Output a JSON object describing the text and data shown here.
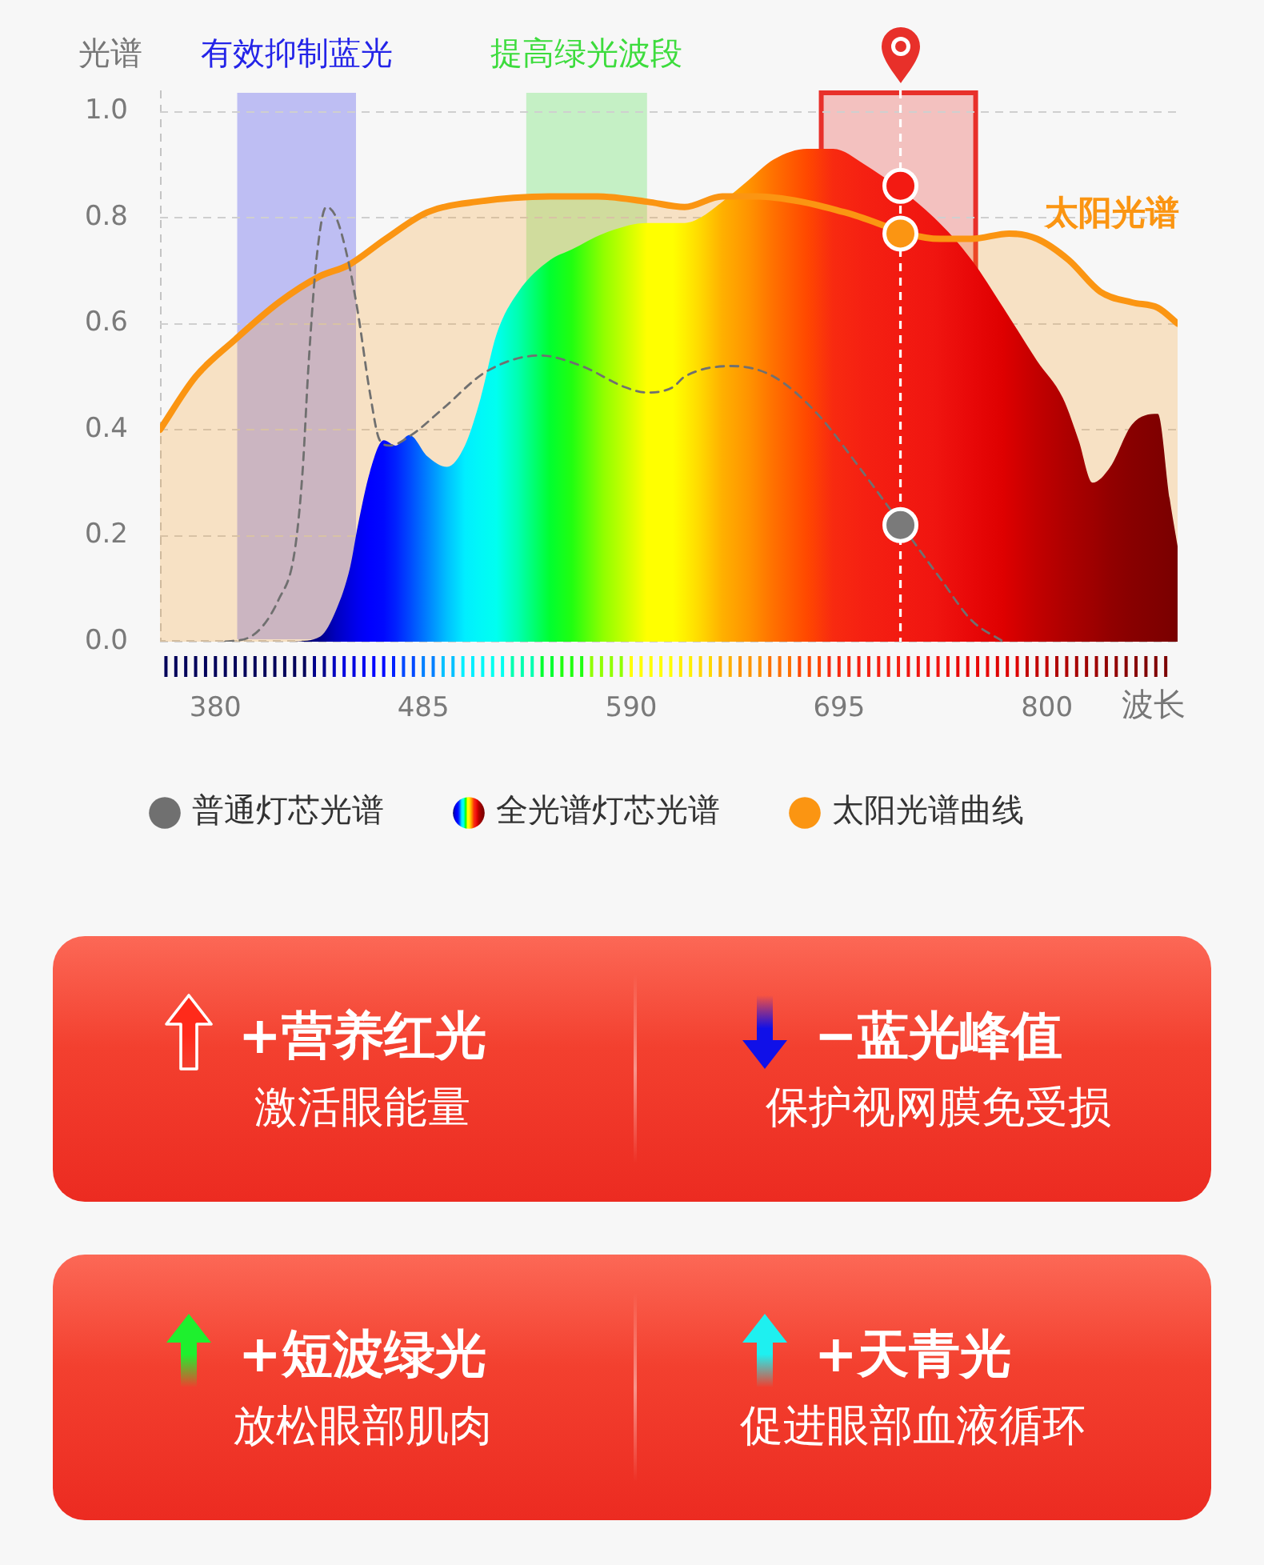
{
  "chart_data": [
    {
      "type": "line",
      "ylabel": "光谱",
      "xlabel": "波长",
      "xlim": [
        352,
        866
      ],
      "xticks": [
        {
          "value": 355,
          "label": null
        },
        {
          "value": 360,
          "label": null
        },
        {
          "value": 365,
          "label": null
        },
        {
          "value": 370,
          "label": null
        },
        {
          "value": 375,
          "label": null
        },
        380,
        {
          "value": 385,
          "label": null
        },
        {
          "value": 390,
          "label": null
        },
        {
          "value": 395,
          "label": null
        },
        {
          "value": 400,
          "label": null
        },
        {
          "value": 405,
          "label": null
        },
        {
          "value": 410,
          "label": null
        },
        {
          "value": 415,
          "label": null
        },
        {
          "value": 420,
          "label": null
        },
        {
          "value": 425,
          "label": null
        },
        {
          "value": 430,
          "label": null
        },
        {
          "value": 435,
          "label": null
        },
        {
          "value": 440,
          "label": null
        },
        {
          "value": 445,
          "label": null
        },
        {
          "value": 450,
          "label": null
        },
        {
          "value": 455,
          "label": null
        },
        {
          "value": 460,
          "label": null
        },
        {
          "value": 465,
          "label": null
        },
        {
          "value": 470,
          "label": null
        },
        {
          "value": 475,
          "label": null
        },
        {
          "value": 480,
          "label": null
        },
        485,
        {
          "value": 490,
          "label": null
        },
        {
          "value": 495,
          "label": null
        },
        {
          "value": 500,
          "label": null
        },
        {
          "value": 505,
          "label": null
        },
        {
          "value": 510,
          "label": null
        },
        {
          "value": 515,
          "label": null
        },
        {
          "value": 520,
          "label": null
        },
        {
          "value": 525,
          "label": null
        },
        {
          "value": 530,
          "label": null
        },
        {
          "value": 535,
          "label": null
        },
        {
          "value": 540,
          "label": null
        },
        {
          "value": 545,
          "label": null
        },
        {
          "value": 550,
          "label": null
        },
        {
          "value": 555,
          "label": null
        },
        {
          "value": 560,
          "label": null
        },
        {
          "value": 565,
          "label": null
        },
        {
          "value": 570,
          "label": null
        },
        {
          "value": 575,
          "label": null
        },
        {
          "value": 580,
          "label": null
        },
        {
          "value": 585,
          "label": null
        },
        590,
        {
          "value": 595,
          "label": null
        },
        {
          "value": 600,
          "label": null
        },
        {
          "value": 605,
          "label": null
        },
        {
          "value": 610,
          "label": null
        },
        {
          "value": 615,
          "label": null
        },
        {
          "value": 620,
          "label": null
        },
        {
          "value": 625,
          "label": null
        },
        {
          "value": 630,
          "label": null
        },
        {
          "value": 635,
          "label": null
        },
        {
          "value": 640,
          "label": null
        },
        {
          "value": 645,
          "label": null
        },
        {
          "value": 650,
          "label": null
        },
        {
          "value": 655,
          "label": null
        },
        {
          "value": 660,
          "label": null
        },
        {
          "value": 665,
          "label": null
        },
        {
          "value": 670,
          "label": null
        },
        {
          "value": 675,
          "label": null
        },
        {
          "value": 680,
          "label": null
        },
        {
          "value": 685,
          "label": null
        },
        {
          "value": 690,
          "label": null
        },
        695,
        {
          "value": 700,
          "label": null
        },
        {
          "value": 705,
          "label": null
        },
        {
          "value": 710,
          "label": null
        },
        {
          "value": 715,
          "label": null
        },
        {
          "value": 720,
          "label": null
        },
        {
          "value": 725,
          "label": null
        },
        {
          "value": 730,
          "label": null
        },
        {
          "value": 735,
          "label": null
        },
        {
          "value": 740,
          "label": null
        },
        {
          "value": 745,
          "label": null
        },
        {
          "value": 750,
          "label": null
        },
        {
          "value": 755,
          "label": null
        },
        {
          "value": 760,
          "label": null
        },
        {
          "value": 765,
          "label": null
        },
        {
          "value": 770,
          "label": null
        },
        {
          "value": 775,
          "label": null
        },
        {
          "value": 780,
          "label": null
        },
        {
          "value": 785,
          "label": null
        },
        {
          "value": 790,
          "label": null
        },
        {
          "value": 795,
          "label": null
        },
        800,
        {
          "value": 805,
          "label": null
        },
        {
          "value": 810,
          "label": null
        },
        {
          "value": 815,
          "label": null
        },
        {
          "value": 820,
          "label": null
        },
        {
          "value": 825,
          "label": null
        },
        {
          "value": 830,
          "label": null
        },
        {
          "value": 835,
          "label": null
        },
        {
          "value": 840,
          "label": null
        },
        {
          "value": 845,
          "label": null
        },
        {
          "value": 850,
          "label": null
        },
        {
          "value": 855,
          "label": null
        },
        {
          "value": 860,
          "label": null
        }
      ],
      "ylim": [
        0,
        1.04
      ],
      "yticks": [
        {
          "value": 0,
          "label": "0.0"
        },
        0.2,
        0.4,
        0.6,
        0.8,
        {
          "value": 1,
          "label": "1.0"
        }
      ],
      "grid": "y",
      "legend": "bottom",
      "series": [
        {
          "name": "普通灯芯光谱",
          "type": "line",
          "color": "#707070",
          "line_style": "dashed",
          "x": [
            385,
            398,
            412,
            420,
            424,
            427,
            431,
            436,
            441,
            447,
            452,
            458,
            463,
            468,
            479,
            495,
            517,
            544,
            565,
            587,
            598,
            611,
            617,
            641,
            662,
            684,
            703,
            746,
            762,
            778
          ],
          "values": [
            0.0,
            0.01,
            0.08,
            0.17,
            0.32,
            0.52,
            0.72,
            0.82,
            0.8,
            0.72,
            0.62,
            0.47,
            0.38,
            0.37,
            0.39,
            0.44,
            0.51,
            0.54,
            0.52,
            0.48,
            0.47,
            0.48,
            0.5,
            0.52,
            0.5,
            0.43,
            0.34,
            0.12,
            0.04,
            0.0
          ]
        },
        {
          "name": "全光谱灯芯光谱",
          "type": "area",
          "x": [
            420,
            433,
            441,
            448,
            452,
            458,
            465,
            471,
            478,
            487,
            497,
            506,
            514,
            522,
            533,
            549,
            560,
            576,
            598,
            611,
            617,
            625,
            636,
            649,
            662,
            679,
            692,
            708,
            743,
            762,
            778,
            795,
            808,
            816,
            823,
            832,
            843,
            856,
            862,
            866
          ],
          "values": [
            0.0,
            0.01,
            0.06,
            0.14,
            0.22,
            0.32,
            0.38,
            0.37,
            0.39,
            0.35,
            0.33,
            0.37,
            0.46,
            0.58,
            0.66,
            0.72,
            0.74,
            0.77,
            0.79,
            0.79,
            0.79,
            0.8,
            0.83,
            0.87,
            0.91,
            0.93,
            0.93,
            0.9,
            0.8,
            0.72,
            0.63,
            0.53,
            0.46,
            0.38,
            0.3,
            0.33,
            0.41,
            0.43,
            0.27,
            0.18
          ],
          "colors": [
            "#00005a",
            "#00008c",
            "#0000c0",
            "#0000e0",
            "#0000f0",
            "#0000ff",
            "#0008ff",
            "#0020ff",
            "#0048ff",
            "#0080ff",
            "#00c0ff",
            "#00eeff",
            "#00f8f8",
            "#00fff0",
            "#00ffb0",
            "#00ff30",
            "#20ff10",
            "#90ff00",
            "#ffff00",
            "#ffff00",
            "#fff000",
            "#ffd800",
            "#ffb000",
            "#ff9400",
            "#ff7000",
            "#ff4800",
            "#f82a10",
            "#f52012",
            "#f01510",
            "#e80808",
            "#de0000",
            "#c20000",
            "#b00000",
            "#a60000",
            "#9e0000",
            "#920000",
            "#880000",
            "#800000",
            "#7c0000",
            "#780000"
          ]
        },
        {
          "name": "太阳光谱曲线",
          "type": "area",
          "color": "#fb9512",
          "x": [
            352,
            370,
            390,
            412,
            433,
            447,
            466,
            487,
            512,
            549,
            573,
            598,
            617,
            636,
            654,
            676,
            698,
            746,
            762,
            781,
            795,
            811,
            827,
            843,
            856,
            866
          ],
          "values": [
            0.4,
            0.5,
            0.57,
            0.64,
            0.69,
            0.71,
            0.76,
            0.81,
            0.83,
            0.84,
            0.84,
            0.83,
            0.82,
            0.84,
            0.84,
            0.83,
            0.81,
            0.76,
            0.76,
            0.77,
            0.76,
            0.72,
            0.66,
            0.64,
            0.63,
            0.6
          ]
        },
        {
          "type": "scatter",
          "marker": "circle",
          "x": [
            726,
            726,
            726
          ],
          "values": [
            0.86,
            0.77,
            0.22
          ],
          "colors": [
            "#f31a12",
            "#fb9512",
            "#7a7a7a"
          ]
        }
      ],
      "bands": [
        {
          "axis": "x",
          "from": 391,
          "to": 451,
          "label": "有效抑制蓝光",
          "color": "#2424e8"
        },
        {
          "axis": "x",
          "from": 537,
          "to": 598,
          "label": "提高绿光波段",
          "color": "#3ddc3d"
        },
        {
          "axis": "x",
          "from": 686,
          "to": 764,
          "color": "#e8302a"
        }
      ],
      "ref_lines": [
        {
          "axis": "x",
          "value": 726,
          "color": "#ffffff",
          "line_style": "dashed"
        }
      ],
      "annotations": [
        "太阳光谱"
      ]
    },
    {
      "type": "other",
      "annotations": [
        "+营养红光",
        "激活眼能量",
        "−蓝光峰值",
        "保护视网膜免受损"
      ]
    },
    {
      "type": "other",
      "annotations": [
        "+短波绿光",
        "放松眼部肌肉",
        "+天青光",
        "促进眼部血液循环"
      ]
    }
  ]
}
